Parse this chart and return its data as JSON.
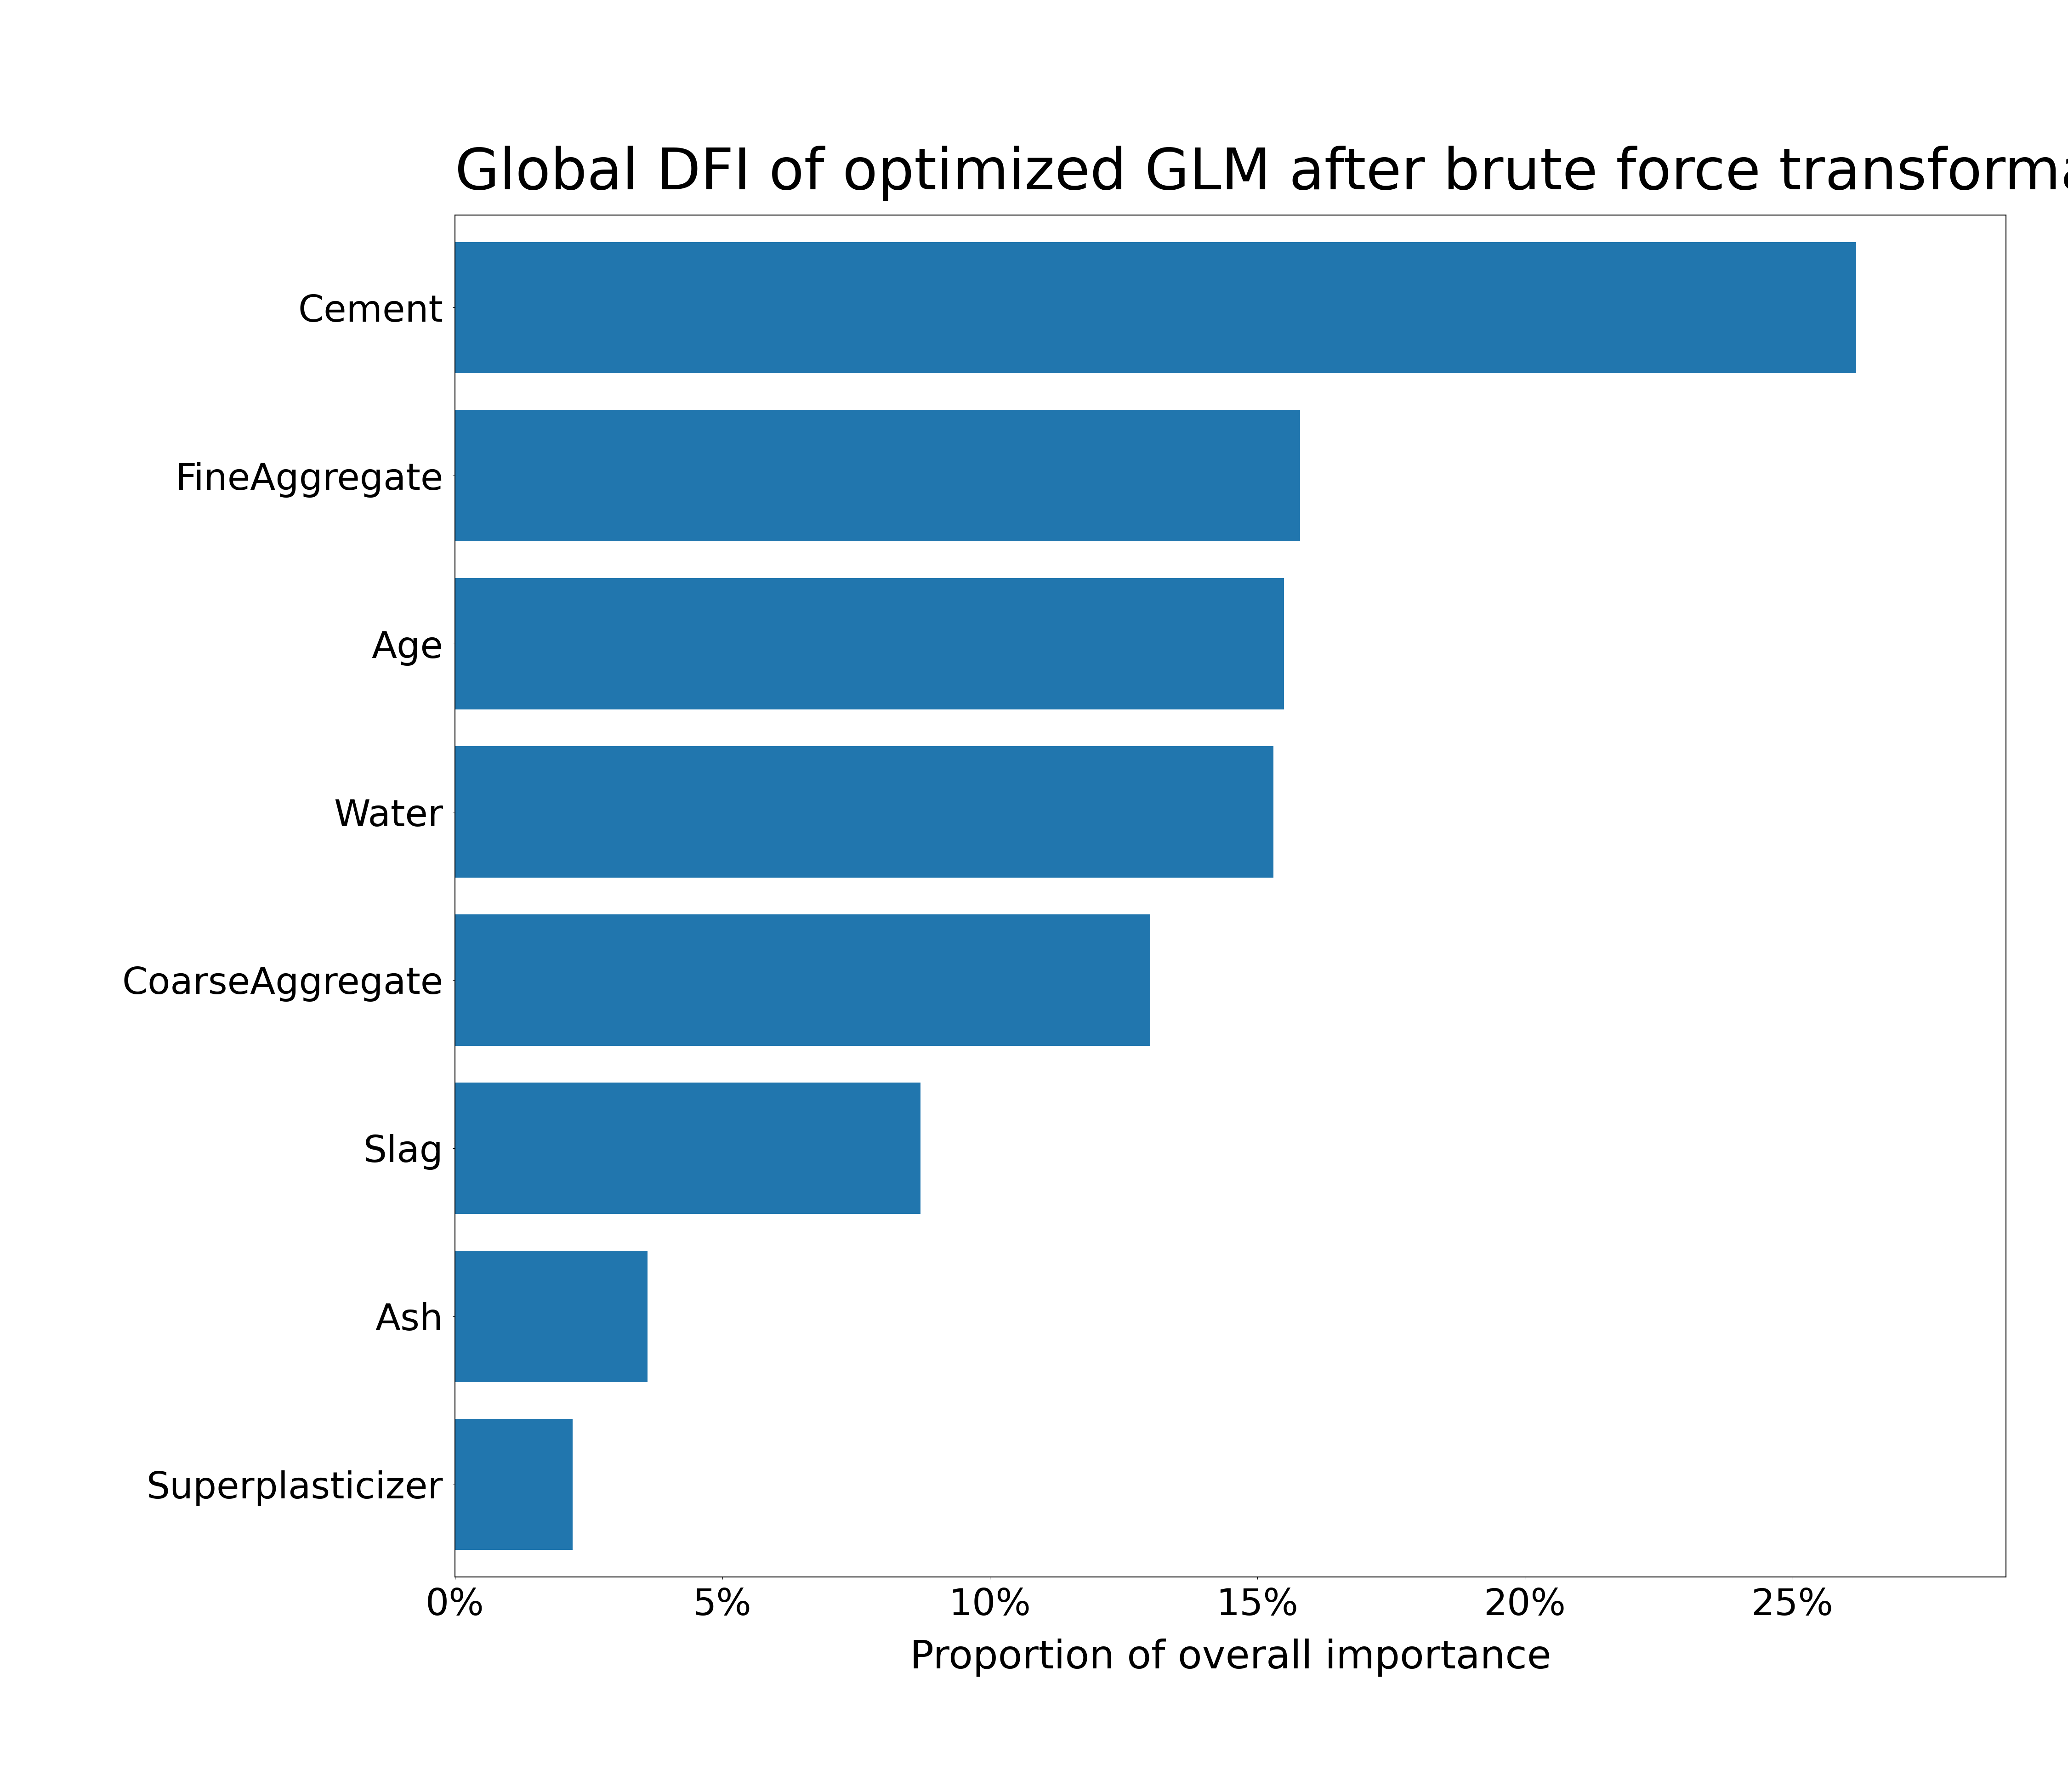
{
  "title": "Global DFI of optimized GLM after brute force transformations",
  "xlabel": "Proportion of overall importance",
  "categories": [
    "Cement",
    "FineAggregate",
    "Age",
    "Water",
    "CoarseAggregate",
    "Slag",
    "Ash",
    "Superplasticizer"
  ],
  "values": [
    0.262,
    0.158,
    0.155,
    0.153,
    0.13,
    0.087,
    0.036,
    0.022
  ],
  "bar_color": "#2176ae",
  "background_color": "#ffffff",
  "xlim": [
    0,
    0.29
  ],
  "title_fontsize": 90,
  "label_fontsize": 62,
  "tick_fontsize": 58,
  "bar_height": 0.78
}
